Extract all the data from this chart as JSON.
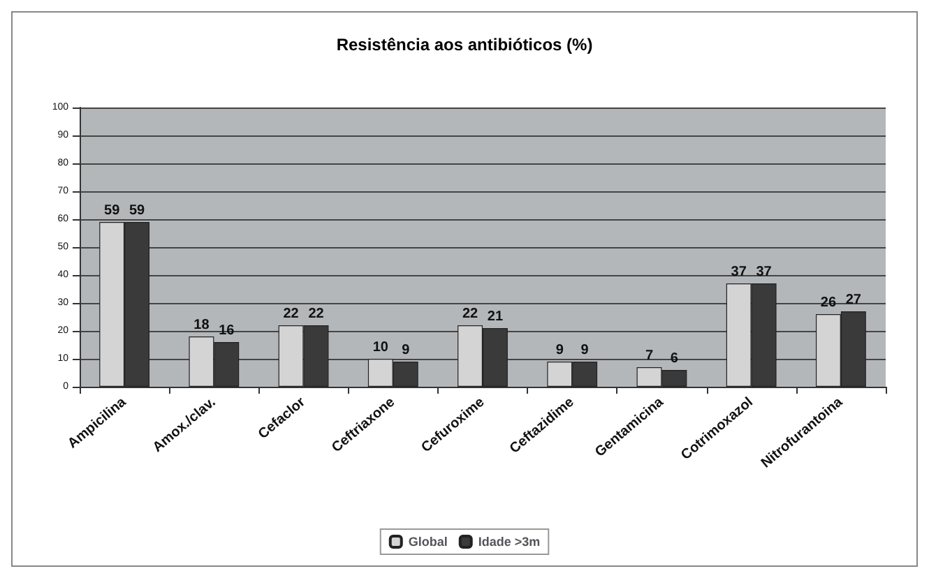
{
  "chart_data": {
    "type": "bar",
    "title": "Resistência aos antibióticos (%)",
    "categories": [
      "Ampicilina",
      "Amox./clav.",
      "Cefaclor",
      "Ceftriaxone",
      "Cefuroxime",
      "Ceftazidime",
      "Gentamicina",
      "Cotrimoxazol",
      "Nitrofurantoina"
    ],
    "series": [
      {
        "name": "Global",
        "color": "#d4d4d4",
        "values": [
          59,
          18,
          22,
          10,
          22,
          9,
          7,
          37,
          26
        ]
      },
      {
        "name": "Idade >3m",
        "color": "#3a3a3a",
        "values": [
          59,
          16,
          22,
          9,
          21,
          9,
          6,
          37,
          27
        ]
      }
    ],
    "ylim": [
      0,
      100
    ],
    "yticks": [
      0,
      10,
      20,
      30,
      40,
      50,
      60,
      70,
      80,
      90,
      100
    ],
    "grid": "y",
    "legend": "bottom",
    "data_labels": true
  }
}
